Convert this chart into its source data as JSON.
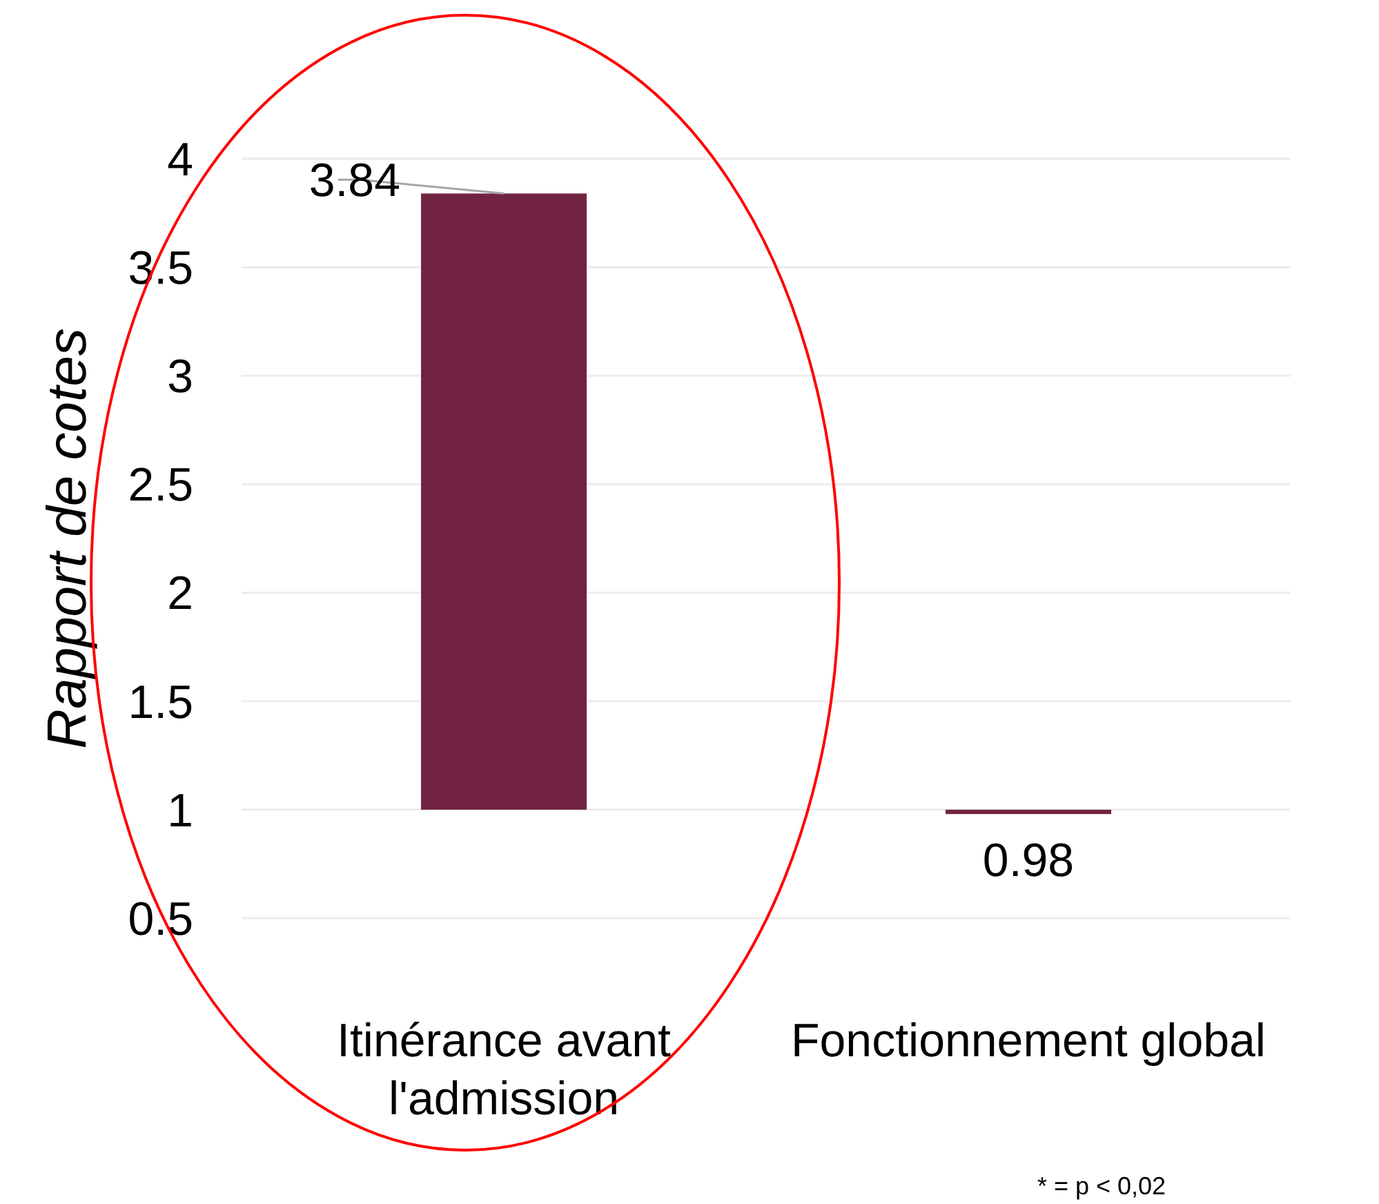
{
  "chart_data": {
    "type": "bar",
    "ylabel": "Rapport de cotes",
    "categories": [
      "Itinérance avant l'admission",
      "Fonctionnement global"
    ],
    "base": [
      1,
      1
    ],
    "values": [
      2.84,
      -0.02
    ],
    "value_labels": [
      "3.84",
      "0.98"
    ],
    "color": "#722341",
    "ylim": [
      0.5,
      4
    ],
    "yticks": [
      0.5,
      1,
      1.5,
      2,
      2.5,
      3,
      3.5,
      4
    ],
    "grid": "y",
    "annotations": [
      "* = p < 0,02"
    ]
  }
}
